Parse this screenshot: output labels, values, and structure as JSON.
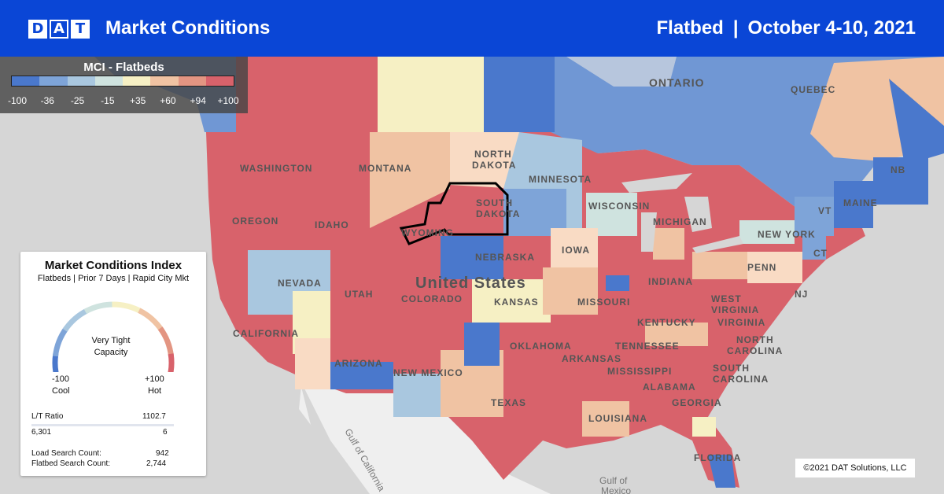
{
  "header": {
    "logo_letters": [
      "D",
      "A",
      "T"
    ],
    "title": "Market Conditions",
    "equipment": "Flatbed",
    "separator": "|",
    "date_range": "October 4-10, 2021"
  },
  "legend": {
    "title": "MCI - Flatbeds",
    "ticks": [
      "-100",
      "-36",
      "-25",
      "-15",
      "+35",
      "+60",
      "+94",
      "+100"
    ],
    "colors": [
      "#4a78cc",
      "#7ea4d8",
      "#a9c7df",
      "#cfe3df",
      "#f6f0c4",
      "#f0c3a3",
      "#e39582",
      "#d8626b"
    ]
  },
  "map": {
    "labels": {
      "ontario": "ONTARIO",
      "quebec": "QUEBEC",
      "washington": "WASHINGTON",
      "oregon": "OREGON",
      "idaho": "IDAHO",
      "montana": "MONTANA",
      "wyoming": "WYOMING",
      "north_dakota_1": "NORTH",
      "north_dakota_2": "DAKOTA",
      "south_dakota_1": "SOUTH",
      "south_dakota_2": "DAKOTA",
      "minnesota": "MINNESOTA",
      "wisconsin": "WISCONSIN",
      "michigan": "MICHIGAN",
      "iowa": "IOWA",
      "nebraska": "NEBRASKA",
      "nevada": "NEVADA",
      "utah": "UTAH",
      "colorado": "COLORADO",
      "kansas": "KANSAS",
      "missouri": "MISSOURI",
      "california": "CALIFORNIA",
      "arizona": "ARIZONA",
      "new_mexico": "NEW MEXICO",
      "oklahoma": "OKLAHOMA",
      "texas": "TEXAS",
      "arkansas": "ARKANSAS",
      "mississippi": "MISSISSIPPI",
      "alabama": "ALABAMA",
      "georgia": "GEORGIA",
      "louisiana": "LOUISIANA",
      "florida": "FLORIDA",
      "tennessee": "TENNESSEE",
      "kentucky": "KENTUCKY",
      "indiana": "INDIANA",
      "west_virginia_1": "WEST",
      "west_virginia_2": "VIRGINIA",
      "virginia": "VIRGINIA",
      "north_carolina_1": "NORTH",
      "north_carolina_2": "CAROLINA",
      "south_carolina_1": "SOUTH",
      "south_carolina_2": "CAROLINA",
      "penn": "PENN",
      "new_york": "NEW YORK",
      "nj": "NJ",
      "ct": "CT",
      "maine": "MAINE",
      "nb": "NB",
      "vt": "VT",
      "united_states": "United States",
      "gulf_california": "Gulf of California",
      "gulf_mexico_1": "Gulf of",
      "gulf_mexico_2": "Mexico"
    }
  },
  "card": {
    "title": "Market Conditions Index",
    "subtitle": "Flatbeds | Prior 7 Days | Rapid City Mkt",
    "gauge_status_1": "Very Tight",
    "gauge_status_2": "Capacity",
    "gauge_value": 100,
    "min_value": "-100",
    "min_label": "Cool",
    "max_value": "+100",
    "max_label": "Hot",
    "ratio_label": "L/T Ratio",
    "ratio_value": "1102.7",
    "loads": "6,301",
    "trucks": "6",
    "load_search_label": "Load Search Count:",
    "load_search_value": "942",
    "flatbed_search_label": "Flatbed Search Count:",
    "flatbed_search_value": "2,744"
  },
  "copyright": "©2021 DAT Solutions, LLC"
}
